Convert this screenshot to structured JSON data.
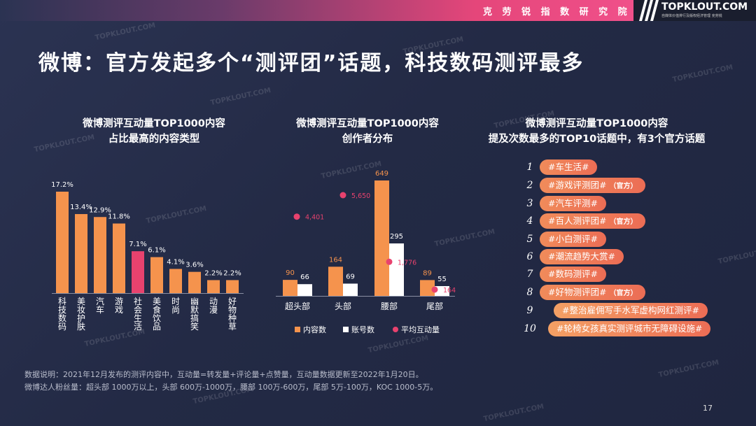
{
  "header": {
    "org": "克 劳 锐 指 数 研 究 院",
    "logo": "TOPKLOUT.COM",
    "logo_sub": "克劳锐",
    "logo_tagline": "自媒体价值排行及版权经济管理"
  },
  "watermark": "TOPKLOUT.COM",
  "title": "微博：官方发起多个“测评团”话题，科技数码测评最多",
  "chart1": {
    "title_line1": "微博测评互动量TOP1000内容",
    "title_line2": "占比最高的内容类型"
  },
  "chart2": {
    "title_line1": "微博测评互动量TOP1000内容",
    "title_line2": "创作者分布"
  },
  "chart3": {
    "title_line1": "微博测评互动量TOP1000内容",
    "title_line2": "提及次数最多的TOP10话题中，有3个官方话题"
  },
  "chart_data": [
    {
      "type": "bar",
      "title": "微博测评互动量TOP1000内容占比最高的内容类型",
      "categories": [
        "科技数码",
        "美妆护肤",
        "汽车",
        "游戏",
        "社会生活",
        "美食饮品",
        "时尚",
        "幽默搞笑",
        "动漫",
        "好物种草"
      ],
      "values": [
        17.2,
        13.4,
        12.9,
        11.8,
        7.1,
        6.1,
        4.1,
        3.6,
        2.2,
        2.2
      ],
      "value_labels": [
        "17.2%",
        "13.4%",
        "12.9%",
        "11.8%",
        "7.1%",
        "6.1%",
        "4.1%",
        "3.6%",
        "2.2%",
        "2.2%"
      ],
      "highlight_index": 4,
      "colors": {
        "bar": "#f5934d",
        "highlight": "#e8426e"
      },
      "ylim": [
        0,
        17.2
      ]
    },
    {
      "type": "bar",
      "title": "微博测评互动量TOP1000内容创作者分布",
      "categories": [
        "超头部",
        "头部",
        "腰部",
        "尾部"
      ],
      "series": [
        {
          "name": "内容数",
          "values": [
            90,
            164,
            649,
            89
          ],
          "color": "#f5934d"
        },
        {
          "name": "账号数",
          "values": [
            66,
            69,
            295,
            55
          ],
          "color": "#ffffff"
        },
        {
          "name": "平均互动量",
          "type": "scatter",
          "values": [
            4401,
            5650,
            1776,
            164
          ],
          "value_labels": [
            "4,401",
            "5,650",
            "1,776",
            "164"
          ],
          "color": "#e8426e"
        }
      ],
      "legend": [
        "内容数",
        "账号数",
        "平均互动量"
      ]
    }
  ],
  "topics": [
    {
      "num": "1",
      "text": "#车生活#",
      "official": ""
    },
    {
      "num": "2",
      "text": "#游戏评测团#",
      "official": "（官方）"
    },
    {
      "num": "3",
      "text": "#汽车评测#",
      "official": ""
    },
    {
      "num": "4",
      "text": "#百人测评团#",
      "official": "（官方）"
    },
    {
      "num": "5",
      "text": "#小白测评#",
      "official": ""
    },
    {
      "num": "6",
      "text": "#潮流趋势大赏#",
      "official": ""
    },
    {
      "num": "7",
      "text": "#数码测评#",
      "official": ""
    },
    {
      "num": "8",
      "text": "#好物测评团#",
      "official": "（官方）"
    },
    {
      "num": "9",
      "text": "#整治雇佣写手水军虚构网红测评#",
      "official": ""
    },
    {
      "num": "10",
      "text": "#轮椅女孩真实测评城市无障碍设施#",
      "official": ""
    }
  ],
  "notes": {
    "line1": "数据说明：2021年12月发布的测评内容中，互动量=转发量+评论量+点赞量，互动量数据更新至2022年1月20日。",
    "line2": "微博达人粉丝量：超头部 1000万以上，头部 600万-1000万，腰部 100万-600万，尾部 5万-100万，KOC 1000-5万。"
  },
  "page_number": "17"
}
